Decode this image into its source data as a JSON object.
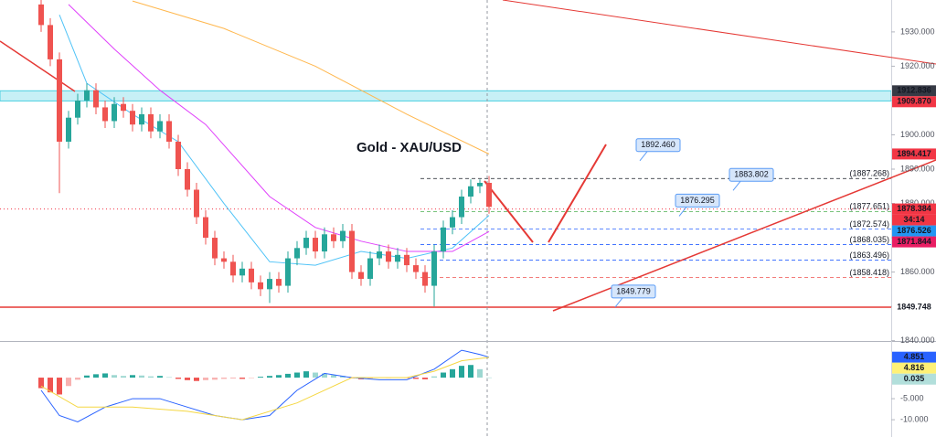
{
  "chart_data": {
    "type": "candlestick",
    "title": "Gold - XAU/USD",
    "open": [
      1938,
      1932,
      1922,
      1898,
      1905,
      1910,
      1913,
      1908,
      1904,
      1909,
      1907,
      1903,
      1906,
      1901,
      1904,
      1898,
      1890,
      1884,
      1876,
      1870,
      1864,
      1863,
      1859,
      1861,
      1857,
      1855,
      1858,
      1856,
      1864,
      1867,
      1870,
      1866,
      1871,
      1869,
      1872,
      1860,
      1858,
      1864,
      1866,
      1863,
      1865,
      1862,
      1860,
      1856,
      1866,
      1873,
      1876,
      1882,
      1885,
      1886
    ],
    "high": [
      1940,
      1934,
      1924,
      1907,
      1912,
      1915,
      1915,
      1910,
      1911,
      1911,
      1909,
      1908,
      1908,
      1906,
      1906,
      1900,
      1892,
      1886,
      1878,
      1872,
      1866,
      1865,
      1863,
      1863,
      1859,
      1860,
      1860,
      1866,
      1869,
      1872,
      1872,
      1873,
      1873,
      1874,
      1874,
      1862,
      1866,
      1868,
      1868,
      1867,
      1867,
      1864,
      1862,
      1868,
      1875,
      1878,
      1884,
      1887,
      1887,
      1888
    ],
    "low": [
      1930,
      1920,
      1883,
      1896,
      1903,
      1908,
      1906,
      1902,
      1902,
      1905,
      1901,
      1901,
      1899,
      1899,
      1896,
      1888,
      1882,
      1874,
      1868,
      1862,
      1861,
      1857,
      1857,
      1855,
      1853,
      1851,
      1854,
      1854,
      1862,
      1865,
      1864,
      1864,
      1867,
      1867,
      1858,
      1856,
      1856,
      1862,
      1861,
      1861,
      1860,
      1858,
      1854,
      1850,
      1864,
      1871,
      1874,
      1880,
      1883,
      1877
    ],
    "close": [
      1932,
      1922,
      1898,
      1905,
      1910,
      1913,
      1908,
      1904,
      1909,
      1907,
      1903,
      1906,
      1901,
      1904,
      1898,
      1890,
      1884,
      1876,
      1870,
      1864,
      1863,
      1859,
      1861,
      1857,
      1855,
      1858,
      1856,
      1864,
      1867,
      1870,
      1866,
      1871,
      1869,
      1872,
      1860,
      1858,
      1864,
      1866,
      1863,
      1865,
      1862,
      1860,
      1856,
      1866,
      1873,
      1876,
      1882,
      1885,
      1886,
      1879
    ],
    "up_color": "#26a69a",
    "down_color": "#ef5350",
    "ylim": [
      1839.9,
      1939.3
    ],
    "yticks": [
      {
        "value": 1840,
        "label": "1840.000"
      },
      {
        "value": 1850,
        "label": "1850.000"
      },
      {
        "value": 1860,
        "label": "1860.000"
      },
      {
        "value": 1870,
        "label": "1870.000"
      },
      {
        "value": 1880,
        "label": "1880.000"
      },
      {
        "value": 1890,
        "label": "1890.000"
      },
      {
        "value": 1900,
        "label": "1900.000"
      },
      {
        "value": 1910,
        "label": "1910.000"
      },
      {
        "value": 1920,
        "label": "1920.000"
      },
      {
        "value": 1930,
        "label": "1930.000"
      }
    ],
    "moving_averages": [
      {
        "color": "#4fc3f7",
        "x": [
          2,
          5,
          10,
          15,
          20,
          25,
          30,
          35,
          40,
          45,
          49
        ],
        "values": [
          1935,
          1915,
          1906,
          1898,
          1880,
          1863,
          1862,
          1866,
          1864,
          1867,
          1876.5
        ]
      },
      {
        "color": "#e040fb",
        "x": [
          3,
          8,
          13,
          18,
          25,
          30,
          35,
          40,
          45,
          49
        ],
        "values": [
          1938,
          1925,
          1913,
          1903,
          1882,
          1873,
          1869,
          1866,
          1866,
          1871.8
        ]
      },
      {
        "color": "#ffb74d",
        "x": [
          10,
          20,
          30,
          40,
          49
        ],
        "values": [
          1939,
          1931,
          1920,
          1906,
          1894.4
        ]
      }
    ],
    "levels": [
      {
        "value": 1887.268,
        "label": "(1887.268)",
        "color": "#131722"
      },
      {
        "value": 1877.651,
        "label": "(1877.651)",
        "color": "#4caf50"
      },
      {
        "value": 1872.574,
        "label": "(1872.574)",
        "color": "#2962ff"
      },
      {
        "value": 1868.035,
        "label": "(1868.035)",
        "color": "#2962ff"
      },
      {
        "value": 1863.496,
        "label": "(1863.496)",
        "color": "#2962ff"
      },
      {
        "value": 1858.418,
        "label": "(1858.418)",
        "color": "#ef5350"
      }
    ],
    "callouts": [
      {
        "value": 1892.46,
        "label": "1892.460"
      },
      {
        "value": 1883.802,
        "label": "1883.802"
      },
      {
        "value": 1876.295,
        "label": "1876.295"
      },
      {
        "value": 1849.779,
        "label": "1849.779"
      }
    ],
    "support": {
      "value": 1849.748,
      "label": "1849.748"
    },
    "price_badges": [
      {
        "value": 1912.836,
        "label": "1912.836",
        "color": "#363a45"
      },
      {
        "value": 1909.87,
        "label": "1909.870",
        "color": "#f23645"
      },
      {
        "value": 1894.417,
        "label": "1894.417",
        "color": "#f23645"
      },
      {
        "value": 1878.384,
        "label": "1878.384",
        "color": "#f23645"
      },
      {
        "value": 1876.526,
        "label": "1876.526",
        "color": "#2196f3"
      },
      {
        "value": 1871.844,
        "label": "1871.844",
        "color": "#e91e63"
      }
    ],
    "countdown": "34:14",
    "macd": {
      "histogram": [
        -2.5,
        -3.5,
        -4,
        -2,
        -0.5,
        0.5,
        0.8,
        1,
        0.6,
        0.4,
        0.6,
        0.5,
        0.3,
        0.4,
        0.1,
        -0.3,
        -0.6,
        -0.8,
        -0.6,
        -0.5,
        -0.3,
        -0.2,
        -0.3,
        -0.1,
        0.2,
        0.4,
        0.6,
        0.9,
        1.2,
        1.5,
        1.2,
        1,
        0.6,
        0.4,
        -0.2,
        -0.4,
        -0.2,
        0.1,
        -0.1,
        0.1,
        -0.1,
        -0.3,
        -0.4,
        0.3,
        1.2,
        2,
        2.8,
        3,
        2,
        0.035
      ],
      "up_color": "#26a69a",
      "down_color": "#ef5350",
      "lines": [
        {
          "color": "#2962ff",
          "x": [
            0,
            2,
            4,
            7,
            10,
            13,
            16,
            19,
            22,
            25,
            28,
            31,
            34,
            37,
            40,
            43,
            46,
            48,
            49
          ],
          "values": [
            -3,
            -9,
            -10.5,
            -7,
            -5,
            -5,
            -7,
            -9,
            -10,
            -9,
            -3,
            1,
            0,
            -0.5,
            -0.5,
            2,
            6.5,
            5.5,
            4.851
          ]
        },
        {
          "color": "#f5d742",
          "x": [
            0,
            4,
            10,
            16,
            22,
            28,
            34,
            40,
            43,
            46,
            49
          ],
          "values": [
            -2,
            -7,
            -7,
            -8,
            -10,
            -6,
            0,
            0,
            1.5,
            4,
            4.816
          ]
        }
      ],
      "ylim": [
        -14.1,
        8.26
      ],
      "yticks": [
        {
          "value": -5,
          "label": "-5.000"
        },
        {
          "value": -10,
          "label": "-10.000"
        }
      ],
      "badges": [
        {
          "value": 4.851,
          "label": "4.851",
          "color": "#2962ff"
        },
        {
          "value": 4.816,
          "label": "4.816",
          "color": "#fff176"
        },
        {
          "value": 0.035,
          "label": "0.035",
          "color": "#b2dfdb"
        }
      ]
    }
  }
}
